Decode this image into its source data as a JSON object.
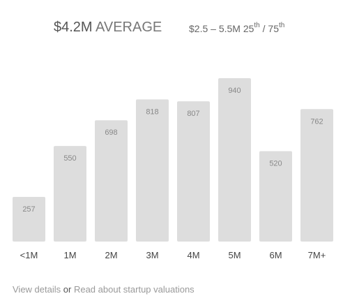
{
  "header": {
    "average_value": "$4.2M",
    "average_label": "AVERAGE",
    "range_text": "$2.5 – 5.5M 25",
    "range_sup1": "th",
    "range_mid": " / 75",
    "range_sup2": "th"
  },
  "chart_data": {
    "type": "bar",
    "categories": [
      "<1M",
      "1M",
      "2M",
      "3M",
      "4M",
      "5M",
      "6M",
      "7M+"
    ],
    "values": [
      257,
      550,
      698,
      818,
      807,
      940,
      520,
      762
    ],
    "title": "",
    "xlabel": "",
    "ylabel": "",
    "ylim": [
      0,
      1000
    ],
    "bar_color": "#dddddd",
    "label_color": "#888888",
    "category_color": "#444444",
    "grid": false
  },
  "footer": {
    "link1": "View details",
    "separator": "or",
    "link2": "Read about startup valuations"
  }
}
